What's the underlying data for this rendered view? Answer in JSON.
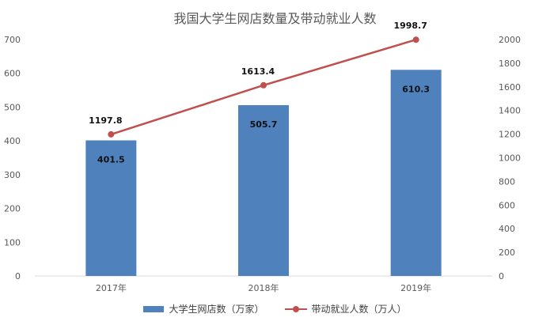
{
  "chart_data": {
    "type": "bar+line",
    "title": "我国大学生网店数量及带动就业人数",
    "categories": [
      "2017年",
      "2018年",
      "2019年"
    ],
    "series": [
      {
        "name": "大学生网店数（万家）",
        "type": "bar",
        "axis": "left",
        "values": [
          401.5,
          505.7,
          610.3
        ],
        "color": "#4f81bd"
      },
      {
        "name": "带动就业人数（万人）",
        "type": "line",
        "axis": "right",
        "values": [
          1197.8,
          1613.4,
          1998.7
        ],
        "color": "#c0504d"
      }
    ],
    "y_left": {
      "min": 0,
      "max": 700,
      "ticks": [
        0,
        100,
        200,
        300,
        400,
        500,
        600,
        700
      ]
    },
    "y_right": {
      "min": 0,
      "max": 2000,
      "ticks": [
        0,
        200,
        400,
        600,
        800,
        1000,
        1200,
        1400,
        1600,
        1800,
        2000
      ]
    },
    "grid": false,
    "legend": "bottom"
  }
}
